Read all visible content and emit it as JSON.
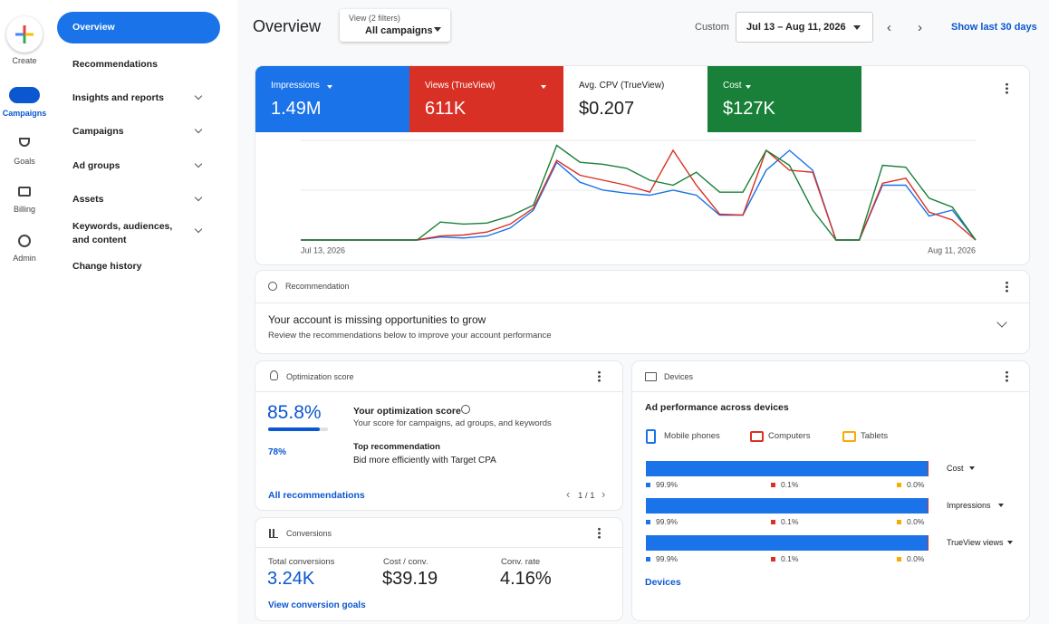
{
  "sidebar": {
    "create": "Create",
    "items": [
      "Campaigns",
      "Goals",
      "Billing",
      "Admin"
    ]
  },
  "nav": {
    "items": [
      "Overview",
      "Recommendations",
      "Insights and reports",
      "Campaigns",
      "Ad groups",
      "Assets",
      "Keywords, audiences, and content",
      "Change history"
    ]
  },
  "header": {
    "title": "Overview",
    "filter_label": "View (2 filters)",
    "filter_value": "All campaigns",
    "range_label": "Custom",
    "range": "Jul 13 – Aug 11, 2026",
    "show_last": "Show last 30 days"
  },
  "metrics": [
    {
      "label": "Impressions",
      "value": "1.49M"
    },
    {
      "label": "Views (TrueView)",
      "value": "611K"
    },
    {
      "label": "Avg. CPV (TrueView)",
      "value": "$0.207"
    },
    {
      "label": "Cost",
      "value": "$127K"
    }
  ],
  "chart_data": {
    "type": "line",
    "categories": [
      "Jul 13, 2026",
      null,
      null,
      null,
      null,
      null,
      null,
      null,
      null,
      null,
      null,
      null,
      null,
      null,
      null,
      null,
      null,
      null,
      null,
      null,
      null,
      null,
      null,
      null,
      null,
      null,
      null,
      null,
      null,
      "Aug 11, 2026"
    ],
    "ylim": [
      0,
      100
    ],
    "series": [
      {
        "color": "#1a73e8",
        "values": [
          0,
          0,
          0,
          0,
          0,
          0,
          3,
          2,
          4,
          12,
          30,
          78,
          58,
          50,
          47,
          45,
          50,
          45,
          25,
          25,
          70,
          90,
          70,
          0,
          0,
          55,
          55,
          24,
          30,
          0
        ]
      },
      {
        "color": "#d93025",
        "values": [
          0,
          0,
          0,
          0,
          0,
          0,
          4,
          5,
          8,
          16,
          32,
          80,
          65,
          60,
          55,
          48,
          90,
          55,
          26,
          25,
          90,
          70,
          68,
          0,
          0,
          57,
          62,
          28,
          20,
          0
        ]
      },
      {
        "color": "#188038",
        "values": [
          0,
          0,
          0,
          0,
          0,
          0,
          18,
          16,
          17,
          24,
          35,
          95,
          78,
          76,
          72,
          60,
          55,
          68,
          48,
          48,
          90,
          75,
          30,
          0,
          0,
          75,
          73,
          42,
          33,
          0
        ]
      }
    ]
  },
  "recommendation": {
    "title": "Recommendation",
    "heading": "Your account is missing opportunities to grow",
    "text": "Review the recommendations below to improve your account performance"
  },
  "optimization": {
    "title": "Optimization score",
    "score": {
      "value": 85.8,
      "label": "85.8%"
    },
    "sub_score": "78%",
    "heading": "Your optimization score",
    "description": "Your score for campaigns, ad groups, and keywords",
    "top_label": "Top recommendation",
    "top_text": "Bid more efficiently with Target CPA",
    "link": "All recommendations",
    "pager": "1 / 1"
  },
  "conversions": {
    "title": "Conversions",
    "metrics": [
      {
        "label": "Total conversions",
        "value": "3.24K"
      },
      {
        "label": "Cost / conv.",
        "value": "$39.19"
      },
      {
        "label": "Conv. rate",
        "value": "4.16%"
      }
    ],
    "link": "View conversion goals"
  },
  "devices": {
    "title": "Devices",
    "heading": "Ad performance across devices",
    "legend": [
      {
        "name": "Mobile phones",
        "color": "#1a73e8"
      },
      {
        "name": "Computers",
        "color": "#d93025"
      },
      {
        "name": "Tablets",
        "color": "#f9ab00"
      }
    ],
    "rows": [
      {
        "metric": "Cost",
        "values": [
          99.9,
          0.1,
          0.0
        ],
        "value_labels": [
          "99.9%",
          "0.1%",
          "0.0%"
        ]
      },
      {
        "metric": "Impressions",
        "values": [
          99.9,
          0.1,
          0.0
        ],
        "value_labels": [
          "99.9%",
          "0.1%",
          "0.0%"
        ]
      },
      {
        "metric": "TrueView views",
        "values": [
          99.9,
          0.1,
          0.0
        ],
        "value_labels": [
          "99.9%",
          "0.1%",
          "0.0%"
        ]
      }
    ],
    "link": "Devices"
  }
}
